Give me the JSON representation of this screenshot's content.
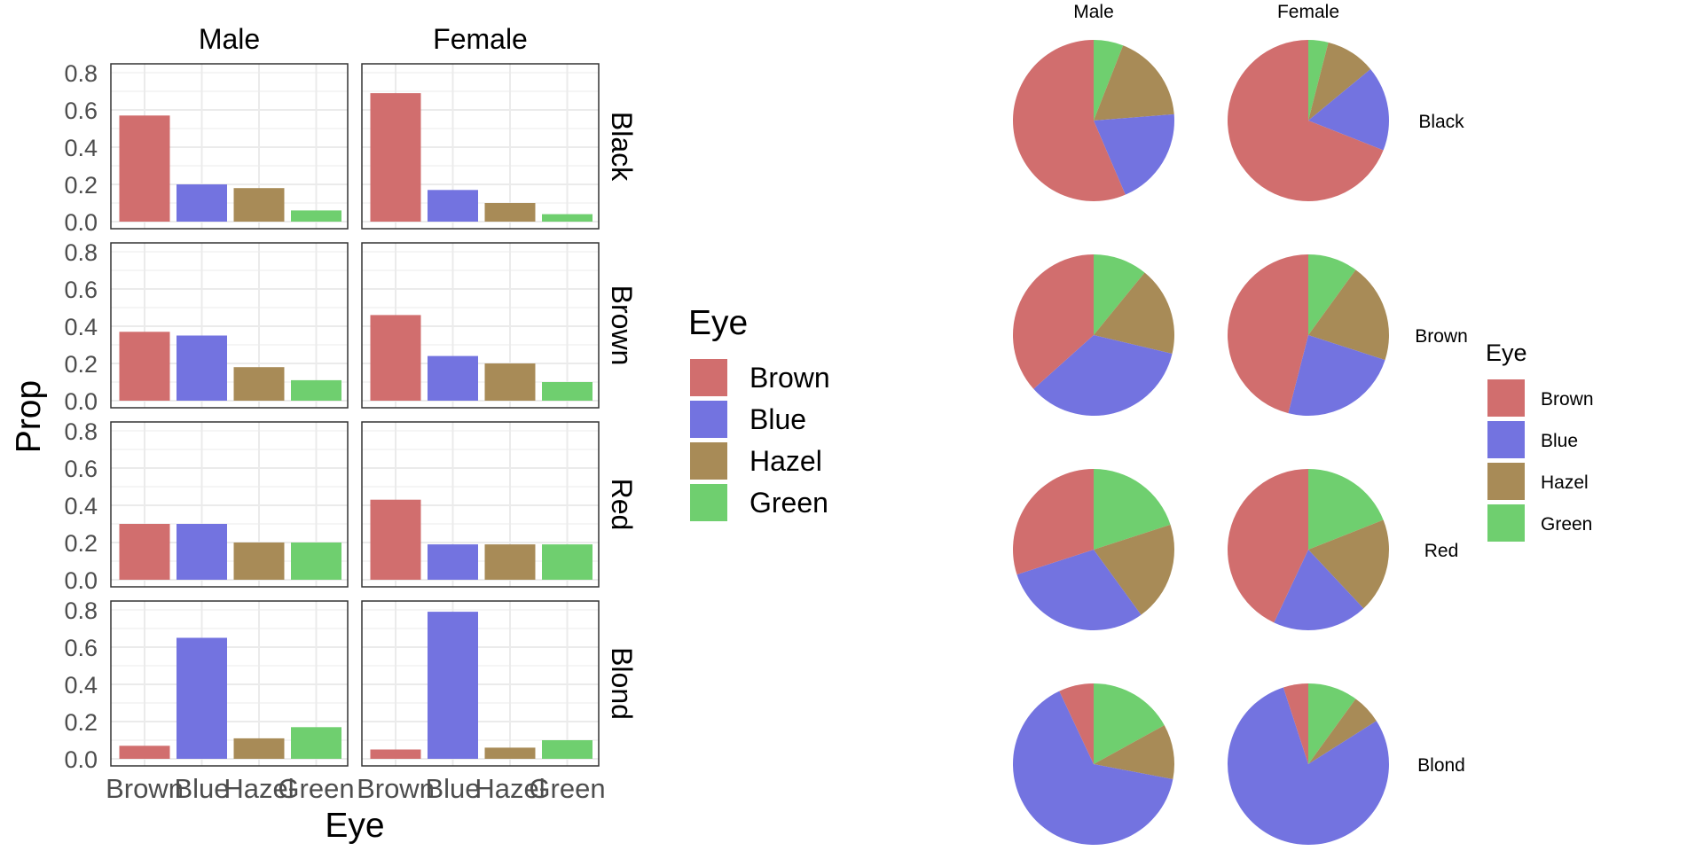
{
  "colors": {
    "Brown": "#D16E6E",
    "Blue": "#7373E0",
    "Hazel": "#A88B57",
    "Green": "#6FCF6F",
    "grid": "#EBEBEB",
    "panel_border": "#333333",
    "axis_text": "#4D4D4D",
    "text": "#000000"
  },
  "chart_data": [
    {
      "type": "bar",
      "title": "",
      "xlabel": "Eye",
      "ylabel": "Prop",
      "ylim": [
        0,
        0.85
      ],
      "y_ticks": [
        "0.0",
        "0.2",
        "0.4",
        "0.6",
        "0.8"
      ],
      "grid": true,
      "legend_position": "right",
      "legend_title": "Eye",
      "categories": [
        "Brown",
        "Blue",
        "Hazel",
        "Green"
      ],
      "col_facets": [
        "Male",
        "Female"
      ],
      "row_facets": [
        "Black",
        "Brown",
        "Red",
        "Blond"
      ],
      "values": {
        "Black": {
          "Male": [
            0.57,
            0.2,
            0.18,
            0.06
          ],
          "Female": [
            0.69,
            0.17,
            0.1,
            0.04
          ]
        },
        "Brown": {
          "Male": [
            0.37,
            0.35,
            0.18,
            0.11
          ],
          "Female": [
            0.46,
            0.24,
            0.2,
            0.1
          ]
        },
        "Red": {
          "Male": [
            0.3,
            0.3,
            0.2,
            0.2
          ],
          "Female": [
            0.43,
            0.19,
            0.19,
            0.19
          ]
        },
        "Blond": {
          "Male": [
            0.07,
            0.65,
            0.11,
            0.17
          ],
          "Female": [
            0.05,
            0.79,
            0.06,
            0.1
          ]
        }
      }
    },
    {
      "type": "pie",
      "title": "",
      "legend_position": "right",
      "legend_title": "Eye",
      "categories": [
        "Brown",
        "Blue",
        "Hazel",
        "Green"
      ],
      "col_facets": [
        "Male",
        "Female"
      ],
      "row_facets": [
        "Black",
        "Brown",
        "Red",
        "Blond"
      ],
      "values": {
        "Black": {
          "Male": [
            0.57,
            0.2,
            0.18,
            0.06
          ],
          "Female": [
            0.69,
            0.17,
            0.1,
            0.04
          ]
        },
        "Brown": {
          "Male": [
            0.37,
            0.35,
            0.18,
            0.11
          ],
          "Female": [
            0.46,
            0.24,
            0.2,
            0.1
          ]
        },
        "Red": {
          "Male": [
            0.3,
            0.3,
            0.2,
            0.2
          ],
          "Female": [
            0.43,
            0.19,
            0.19,
            0.19
          ]
        },
        "Blond": {
          "Male": [
            0.07,
            0.65,
            0.11,
            0.17
          ],
          "Female": [
            0.05,
            0.79,
            0.06,
            0.1
          ]
        }
      }
    }
  ]
}
